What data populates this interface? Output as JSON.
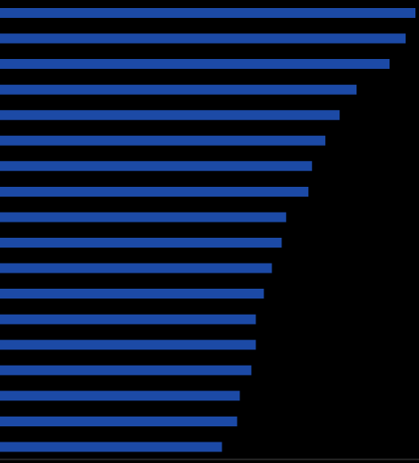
{
  "chart_data": {
    "type": "bar",
    "orientation": "horizontal",
    "categories": [
      null,
      null,
      null,
      null,
      null,
      null,
      null,
      null,
      null,
      null,
      null,
      null,
      null,
      null,
      null,
      null,
      null,
      null
    ],
    "values": [
      466,
      455,
      437,
      400,
      381,
      365,
      350,
      346,
      321,
      316,
      305,
      296,
      287,
      287,
      282,
      269,
      266,
      249
    ],
    "color": "#1c4aa6",
    "xlim": [
      0,
      470
    ],
    "tick_labels": false,
    "grid": false
  }
}
